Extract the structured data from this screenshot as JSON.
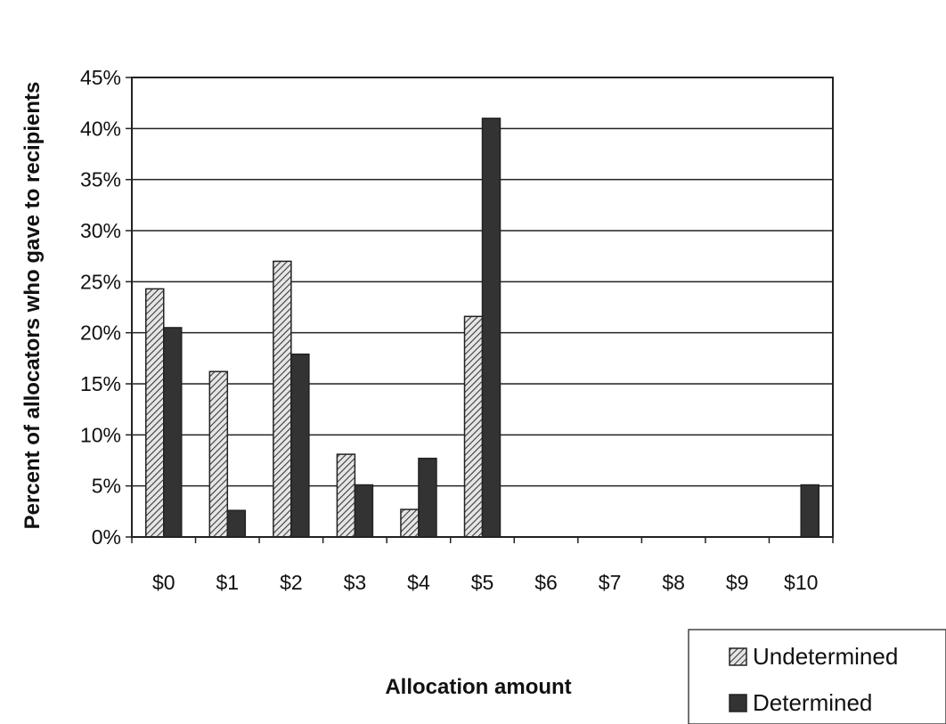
{
  "chart_data": {
    "type": "bar",
    "title": "",
    "xlabel": "Allocation amount",
    "ylabel": "Percent of allocators who gave to recipients",
    "categories": [
      "$0",
      "$1",
      "$2",
      "$3",
      "$4",
      "$5",
      "$6",
      "$7",
      "$8",
      "$9",
      "$10"
    ],
    "y_ticks": [
      "0%",
      "5%",
      "10%",
      "15%",
      "20%",
      "25%",
      "30%",
      "35%",
      "40%",
      "45%"
    ],
    "ylim": [
      0,
      45
    ],
    "grid": "horizontal",
    "legend_position": "bottom-right",
    "series": [
      {
        "name": "Undetermined",
        "fill": "hatched",
        "color": "#9a9a9a",
        "values": [
          24.3,
          16.2,
          27.0,
          8.1,
          2.7,
          21.6,
          0,
          0,
          0,
          0,
          0
        ]
      },
      {
        "name": "Determined",
        "fill": "solid",
        "color": "#333333",
        "values": [
          20.5,
          2.6,
          17.9,
          5.1,
          7.7,
          41.0,
          0,
          0,
          0,
          0,
          5.1
        ]
      }
    ]
  }
}
